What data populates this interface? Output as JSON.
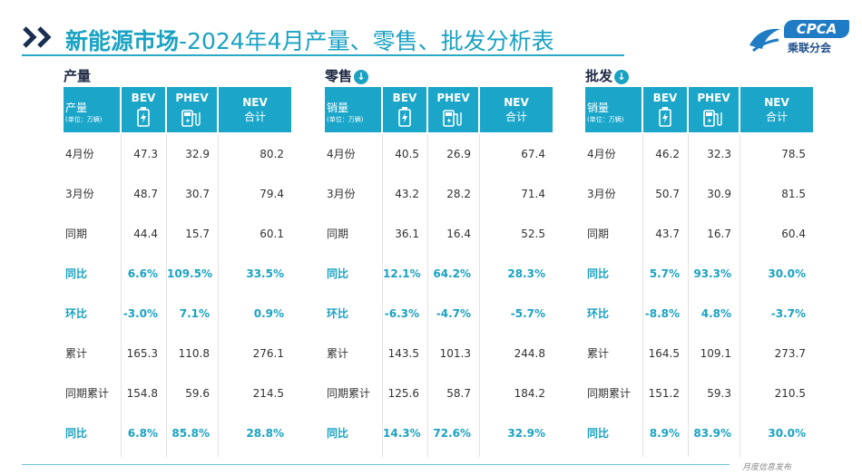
{
  "header": {
    "title_bold": "新能源市场",
    "title_rest": "-2024年4月产量、零售、批发分析表",
    "logo_text": "CPCA",
    "logo_cn": "乘联分会",
    "brand_color": "#1aa2c3"
  },
  "footer": {
    "text": "月度信息发布"
  },
  "columns": {
    "bev": "BEV",
    "phev": "PHEV",
    "nev_line1": "NEV",
    "nev_line2": "合计",
    "unit": "(单位：万辆)"
  },
  "row_labels": [
    "4月份",
    "3月份",
    "同期",
    "同比",
    "环比",
    "累计",
    "同期累计",
    "同比"
  ],
  "highlight_rows": [
    3,
    4,
    7
  ],
  "tables": [
    {
      "section": "产量",
      "first_header": "产量",
      "has_down_icon": false,
      "rows": [
        [
          "47.3",
          "32.9",
          "80.2"
        ],
        [
          "48.7",
          "30.7",
          "79.4"
        ],
        [
          "44.4",
          "15.7",
          "60.1"
        ],
        [
          "6.6%",
          "109.5%",
          "33.5%"
        ],
        [
          "-3.0%",
          "7.1%",
          "0.9%"
        ],
        [
          "165.3",
          "110.8",
          "276.1"
        ],
        [
          "154.8",
          "59.6",
          "214.5"
        ],
        [
          "6.8%",
          "85.8%",
          "28.8%"
        ]
      ]
    },
    {
      "section": "零售",
      "first_header": "销量",
      "has_down_icon": true,
      "rows": [
        [
          "40.5",
          "26.9",
          "67.4"
        ],
        [
          "43.2",
          "28.2",
          "71.4"
        ],
        [
          "36.1",
          "16.4",
          "52.5"
        ],
        [
          "12.1%",
          "64.2%",
          "28.3%"
        ],
        [
          "-6.3%",
          "-4.7%",
          "-5.7%"
        ],
        [
          "143.5",
          "101.3",
          "244.8"
        ],
        [
          "125.6",
          "58.7",
          "184.2"
        ],
        [
          "14.3%",
          "72.6%",
          "32.9%"
        ]
      ]
    },
    {
      "section": "批发",
      "first_header": "销量",
      "has_down_icon": true,
      "rows": [
        [
          "46.2",
          "32.3",
          "78.5"
        ],
        [
          "50.7",
          "30.9",
          "81.5"
        ],
        [
          "43.7",
          "16.7",
          "60.4"
        ],
        [
          "5.7%",
          "93.3%",
          "30.0%"
        ],
        [
          "-8.8%",
          "4.8%",
          "-3.7%"
        ],
        [
          "164.5",
          "109.1",
          "273.7"
        ],
        [
          "151.2",
          "59.3",
          "210.5"
        ],
        [
          "8.9%",
          "83.9%",
          "30.0%"
        ]
      ]
    }
  ]
}
